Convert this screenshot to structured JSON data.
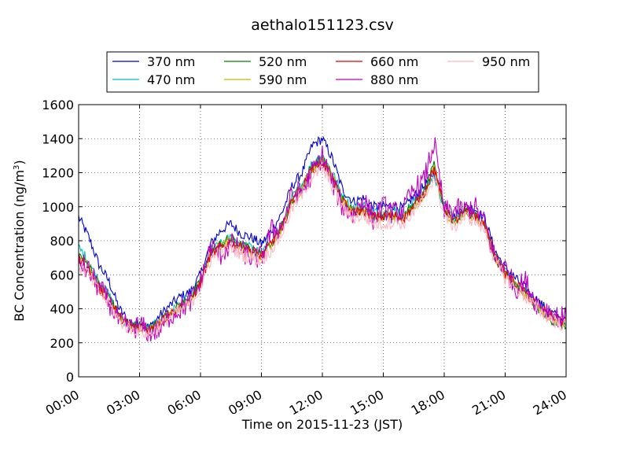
{
  "chart_data": {
    "type": "line",
    "title": "aethalo151123.csv",
    "xlabel": "Time on 2015-11-23 (JST)",
    "ylabel_main": "BC Concentration (ng/m",
    "ylabel_sup": "3",
    "ylabel_tail": ")",
    "xlim": [
      0,
      24
    ],
    "ylim": [
      0,
      1600
    ],
    "x_ticks": [
      0,
      3,
      6,
      9,
      12,
      15,
      18,
      21,
      24
    ],
    "x_tick_labels": [
      "00:00",
      "03:00",
      "06:00",
      "09:00",
      "12:00",
      "15:00",
      "18:00",
      "21:00",
      "24:00"
    ],
    "y_ticks": [
      0,
      200,
      400,
      600,
      800,
      1000,
      1200,
      1400,
      1600
    ],
    "y_tick_labels": [
      "0",
      "200",
      "400",
      "600",
      "800",
      "1000",
      "1200",
      "1400",
      "1600"
    ],
    "grid": true,
    "legend_position": "top-center",
    "x_unit": "hours",
    "x": [
      0.0,
      0.5,
      1.0,
      1.5,
      2.0,
      2.5,
      3.0,
      3.5,
      4.0,
      4.5,
      5.0,
      5.5,
      6.0,
      6.5,
      7.0,
      7.5,
      8.0,
      8.5,
      9.0,
      9.5,
      10.0,
      10.5,
      11.0,
      11.5,
      12.0,
      12.5,
      13.0,
      13.5,
      14.0,
      14.5,
      15.0,
      15.5,
      16.0,
      16.5,
      17.0,
      17.5,
      18.0,
      18.5,
      19.0,
      19.5,
      20.0,
      20.5,
      21.0,
      21.5,
      22.0,
      22.5,
      23.0,
      23.5,
      24.0
    ],
    "series": [
      {
        "name": "370 nm",
        "color": "#0000cc",
        "values": [
          940,
          820,
          660,
          560,
          400,
          320,
          310,
          290,
          360,
          420,
          470,
          500,
          600,
          780,
          860,
          900,
          840,
          820,
          780,
          860,
          960,
          1120,
          1200,
          1360,
          1400,
          1280,
          1100,
          1030,
          1050,
          1000,
          1000,
          1010,
          990,
          1060,
          1120,
          1200,
          1020,
          940,
          1000,
          990,
          930,
          740,
          640,
          580,
          520,
          460,
          400,
          360,
          330
        ]
      },
      {
        "name": "470 nm",
        "color": "#00bfbf",
        "values": [
          760,
          680,
          560,
          480,
          360,
          300,
          300,
          280,
          330,
          380,
          420,
          470,
          560,
          740,
          780,
          820,
          780,
          760,
          730,
          800,
          890,
          1050,
          1130,
          1260,
          1300,
          1200,
          1060,
          990,
          1010,
          970,
          960,
          980,
          960,
          1030,
          1090,
          1180,
          1000,
          920,
          980,
          960,
          900,
          710,
          610,
          550,
          490,
          430,
          370,
          330,
          300
        ]
      },
      {
        "name": "520 nm",
        "color": "#008000",
        "values": [
          720,
          660,
          540,
          470,
          360,
          300,
          300,
          280,
          330,
          380,
          420,
          460,
          560,
          730,
          780,
          810,
          770,
          750,
          720,
          790,
          880,
          1040,
          1120,
          1240,
          1280,
          1180,
          1040,
          970,
          990,
          950,
          950,
          960,
          940,
          1010,
          1080,
          1240,
          990,
          910,
          970,
          950,
          890,
          700,
          600,
          540,
          480,
          420,
          360,
          320,
          290
        ]
      },
      {
        "name": "590 nm",
        "color": "#c8b400",
        "values": [
          700,
          640,
          530,
          460,
          350,
          300,
          290,
          280,
          320,
          370,
          410,
          450,
          550,
          720,
          770,
          800,
          760,
          740,
          710,
          780,
          870,
          1030,
          1110,
          1230,
          1270,
          1170,
          1030,
          970,
          980,
          940,
          940,
          950,
          930,
          1000,
          1070,
          1220,
          980,
          900,
          960,
          940,
          880,
          700,
          600,
          540,
          480,
          420,
          370,
          330,
          310
        ]
      },
      {
        "name": "660 nm",
        "color": "#e00000",
        "values": [
          690,
          630,
          520,
          450,
          350,
          300,
          290,
          270,
          320,
          370,
          410,
          450,
          550,
          720,
          760,
          790,
          760,
          740,
          710,
          790,
          870,
          1030,
          1110,
          1220,
          1260,
          1160,
          1030,
          960,
          980,
          940,
          940,
          950,
          930,
          1000,
          1080,
          1230,
          990,
          910,
          970,
          950,
          890,
          710,
          610,
          550,
          490,
          430,
          380,
          340,
          320
        ]
      },
      {
        "name": "880 nm",
        "color": "#bf00bf",
        "values": [
          680,
          620,
          520,
          440,
          320,
          280,
          300,
          260,
          280,
          360,
          400,
          440,
          560,
          760,
          720,
          780,
          740,
          700,
          700,
          860,
          880,
          1070,
          1090,
          1200,
          1300,
          1140,
          1000,
          950,
          1050,
          930,
          1000,
          960,
          980,
          1100,
          1150,
          1380,
          970,
          980,
          980,
          1000,
          900,
          700,
          640,
          520,
          560,
          440,
          400,
          360,
          340
        ]
      },
      {
        "name": "950 nm",
        "color": "#ffb6c1",
        "values": [
          650,
          600,
          500,
          430,
          330,
          280,
          270,
          250,
          300,
          350,
          390,
          430,
          520,
          690,
          730,
          760,
          720,
          700,
          680,
          750,
          840,
          990,
          1070,
          1180,
          1220,
          1120,
          990,
          930,
          950,
          900,
          900,
          910,
          900,
          970,
          1040,
          1180,
          950,
          880,
          940,
          920,
          860,
          680,
          580,
          520,
          470,
          410,
          360,
          320,
          300
        ]
      }
    ]
  }
}
